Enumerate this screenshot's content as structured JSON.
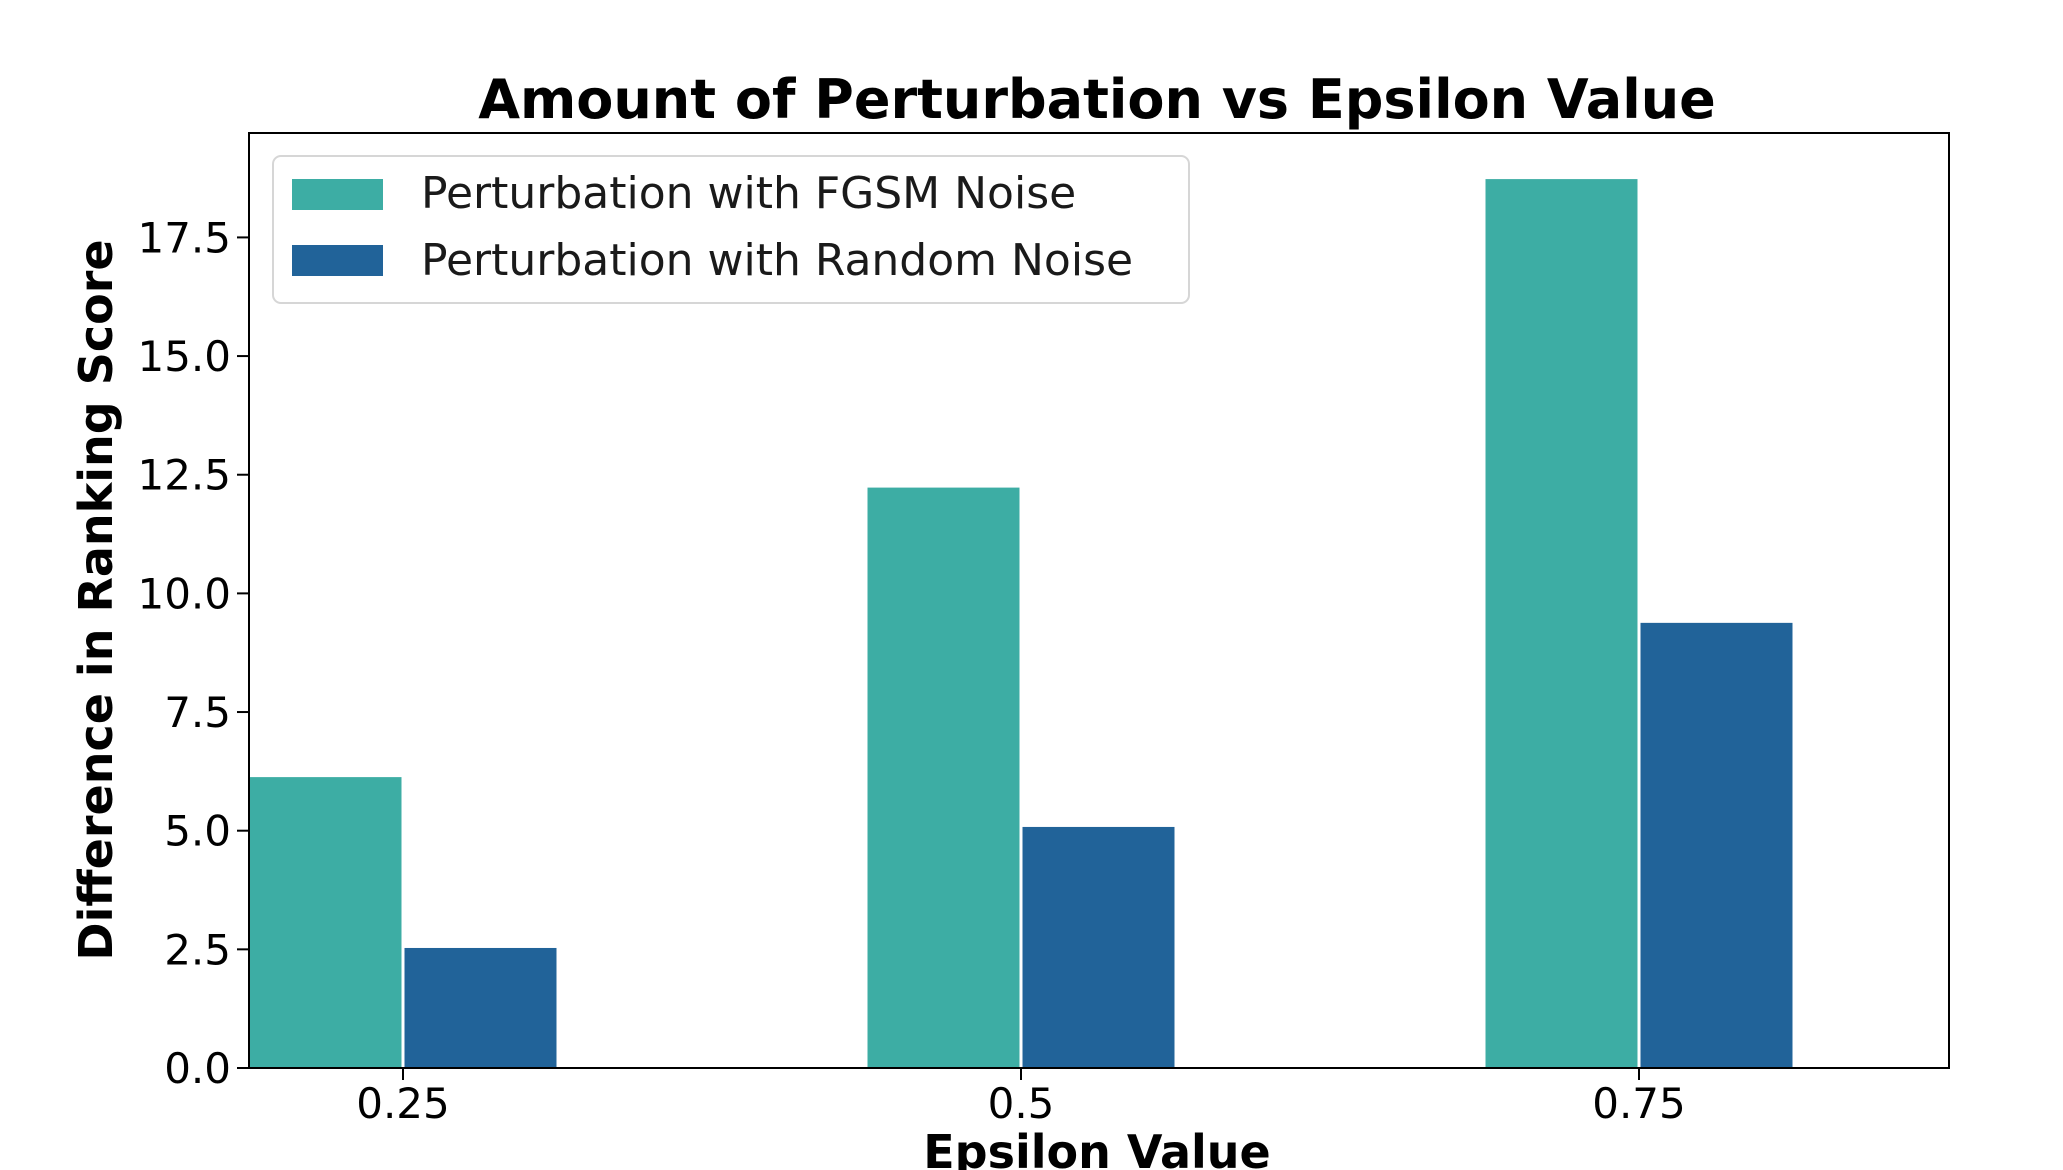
{
  "chart_data": {
    "type": "bar",
    "title": "Amount of Perturbation vs Epsilon Value",
    "xlabel": "Epsilon Value",
    "ylabel": "Difference in Ranking Score",
    "categories": [
      "0.25",
      "0.5",
      "0.75"
    ],
    "series": [
      {
        "name": "Perturbation with FGSM Noise",
        "values": [
          6.15,
          12.25,
          18.75
        ],
        "color": "#3dada4"
      },
      {
        "name": "Perturbation with Random Noise",
        "values": [
          2.55,
          5.1,
          9.4
        ],
        "color": "#216399"
      }
    ],
    "ylim": [
      0,
      19.7
    ],
    "yticks": [
      "0.0",
      "2.5",
      "5.0",
      "7.5",
      "10.0",
      "12.5",
      "15.0",
      "17.5"
    ],
    "grid": false,
    "legend_position": "top-left"
  }
}
